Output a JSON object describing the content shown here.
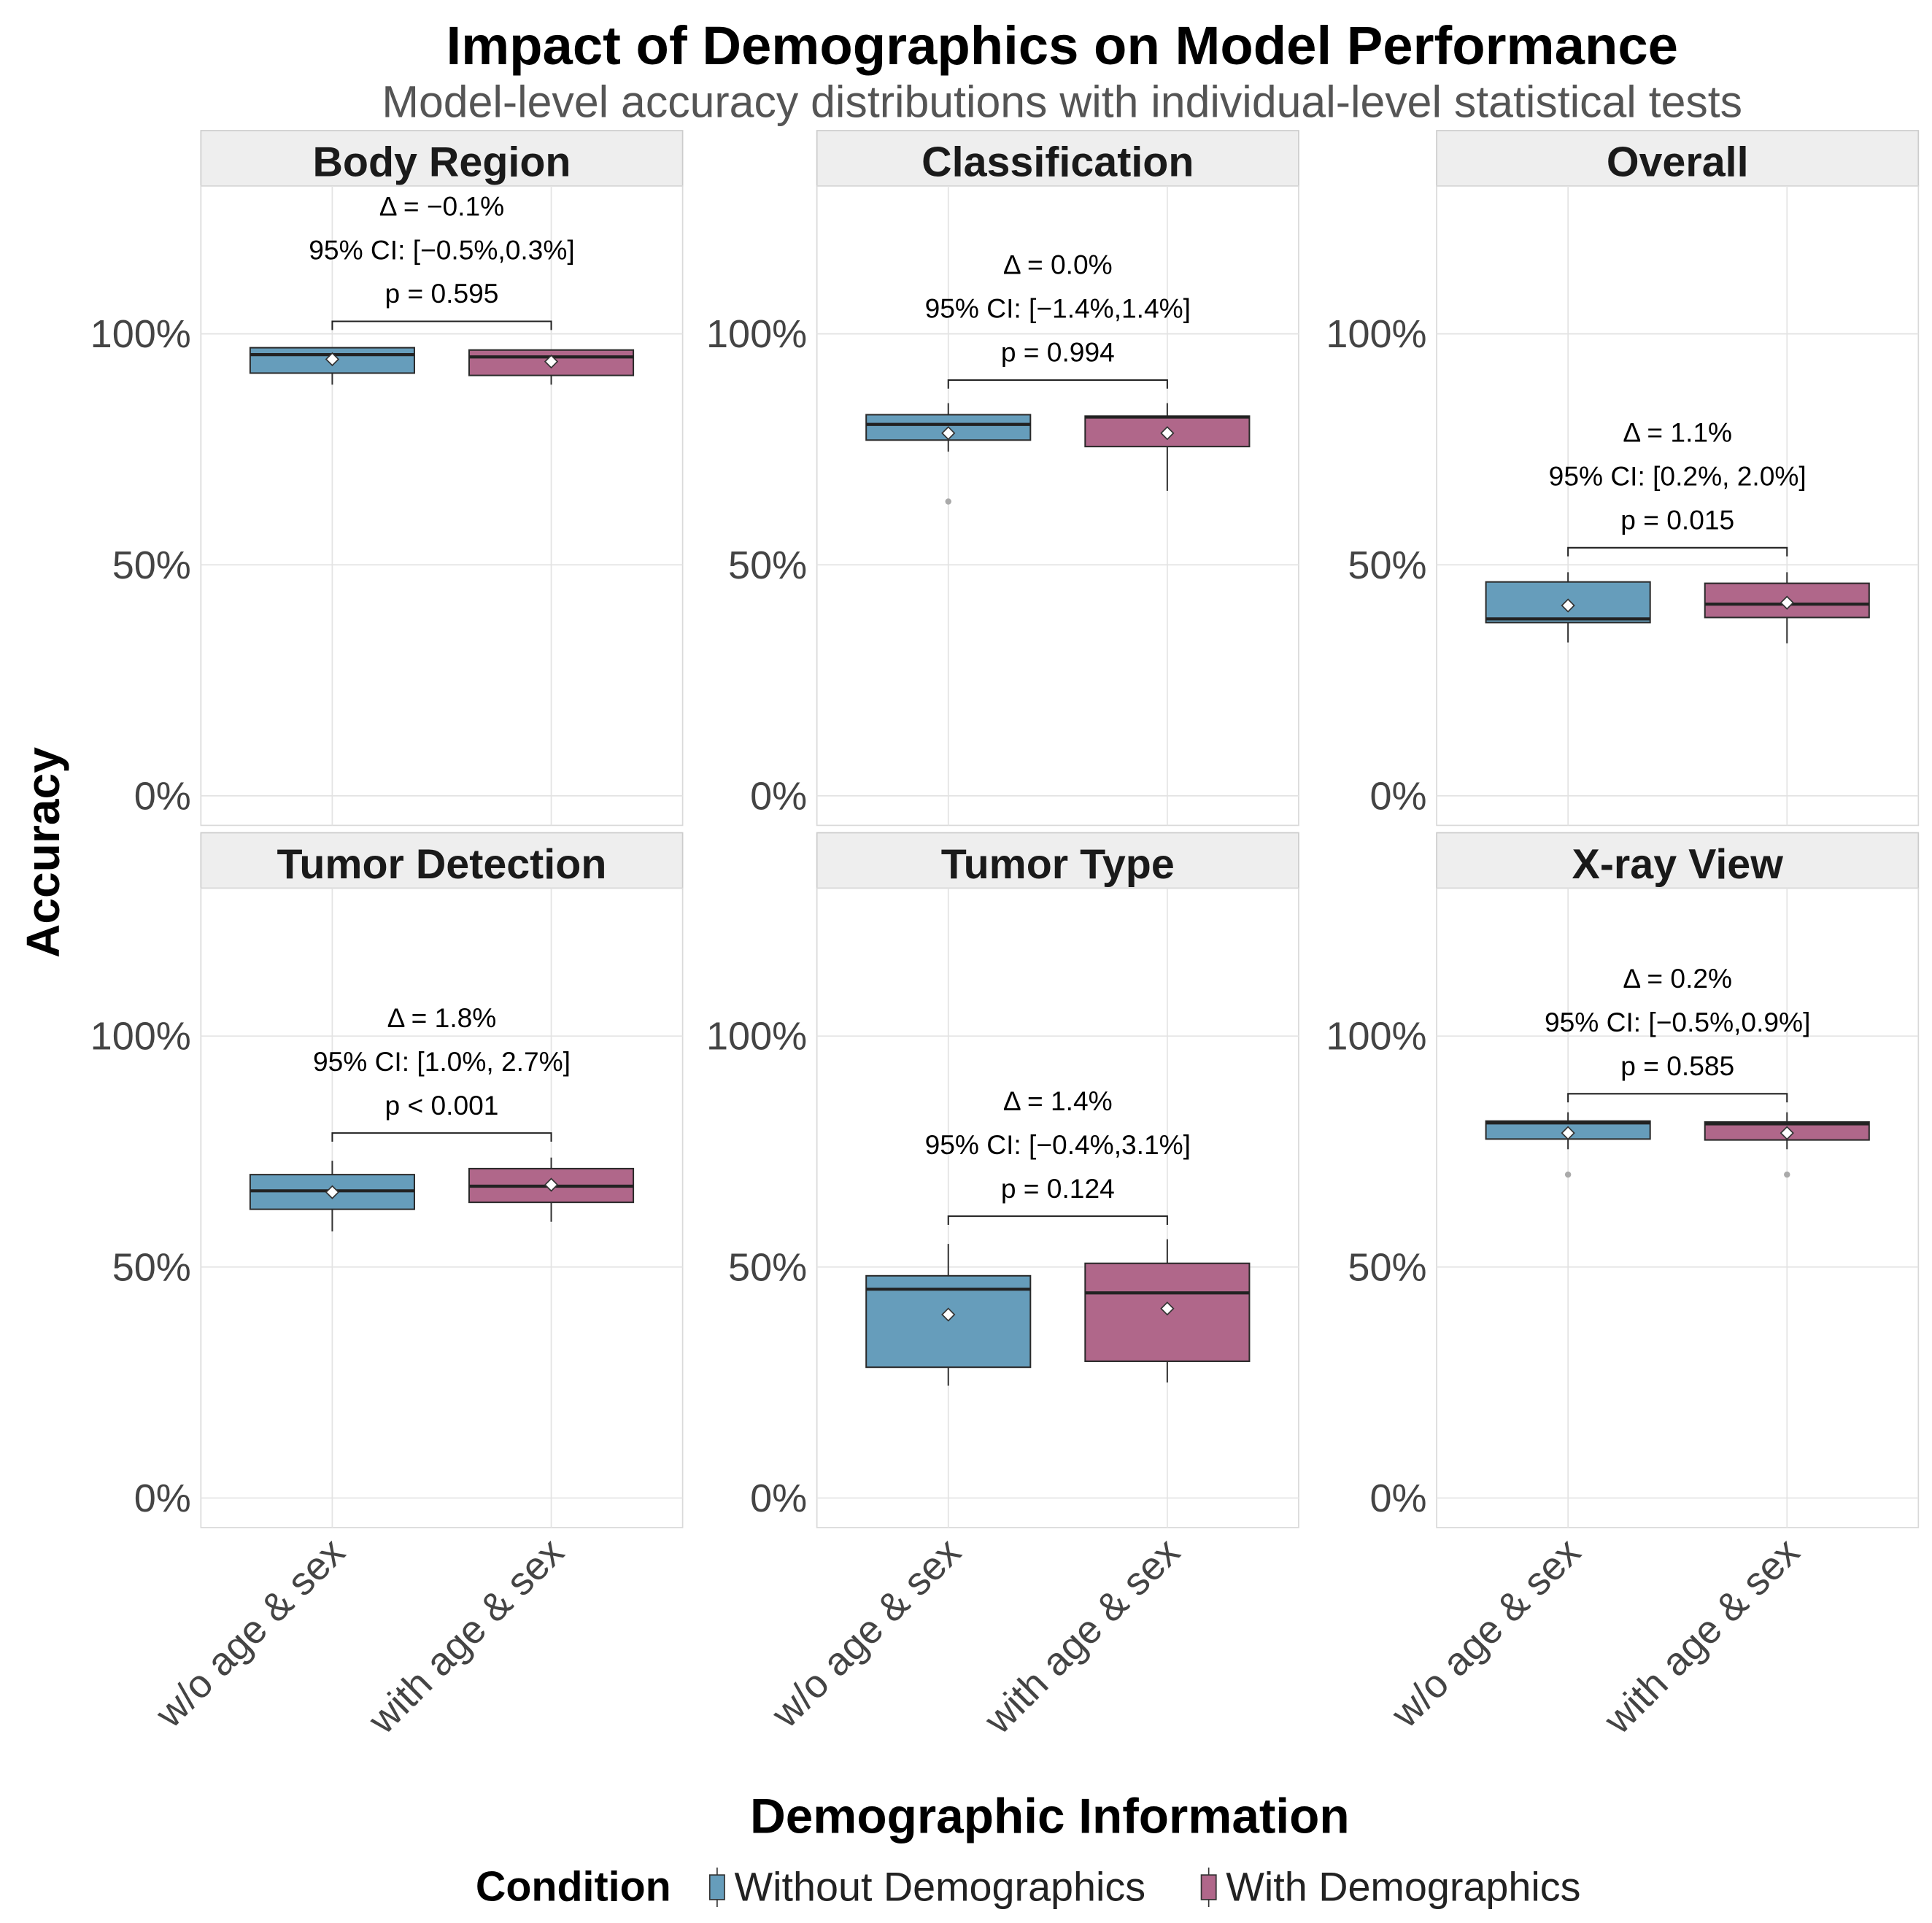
{
  "chart_data": {
    "type": "box",
    "title": "Impact of Demographics on Model Performance",
    "subtitle": "Model-level accuracy distributions with individual-level statistical tests",
    "xlabel": "Demographic Information",
    "ylabel": "Accuracy",
    "categories": [
      "w/o age & sex",
      "with age & sex"
    ],
    "yticks": [
      0,
      50,
      100
    ],
    "ytick_labels": [
      "0%",
      "50%",
      "100%"
    ],
    "ylim": [
      -6.4,
      132
    ],
    "grid": true,
    "legend": {
      "title": "Condition",
      "placement": "bottom",
      "entries": [
        {
          "name": "Without Demographics",
          "color": "#669DBB"
        },
        {
          "name": "With Demographics",
          "color": "#B0678A"
        }
      ]
    },
    "panels": [
      {
        "title": "Body Region",
        "annotation": [
          "Δ = −0.1%",
          "95% CI: [−0.5%,0.3%]",
          "p = 0.595"
        ],
        "bracket_y": 102.7,
        "series": [
          {
            "q1": 91.5,
            "median": 95.5,
            "q3": 97,
            "whisker_low": 89,
            "whisker_high": 97,
            "mean": 94.5,
            "outliers": []
          },
          {
            "q1": 91,
            "median": 95,
            "q3": 96.5,
            "whisker_low": 89,
            "whisker_high": 96.5,
            "mean": 94,
            "outliers": []
          }
        ]
      },
      {
        "title": "Classification",
        "annotation": [
          "Δ = 0.0%",
          "95% CI: [−1.4%,1.4%]",
          "p = 0.994"
        ],
        "bracket_y": 90,
        "series": [
          {
            "q1": 77,
            "median": 80.4,
            "q3": 82.5,
            "whisker_low": 74.5,
            "whisker_high": 85,
            "mean": 78.5,
            "outliers": [
              63.7
            ]
          },
          {
            "q1": 75.6,
            "median": 82,
            "q3": 82.2,
            "whisker_low": 66,
            "whisker_high": 85,
            "mean": 78.5,
            "outliers": []
          }
        ]
      },
      {
        "title": "Overall",
        "annotation": [
          "Δ = 1.1%",
          "95% CI: [0.2%, 2.0%]",
          "p = 0.015"
        ],
        "bracket_y": 53.7,
        "series": [
          {
            "q1": 37.5,
            "median": 38.3,
            "q3": 46.3,
            "whisker_low": 33.2,
            "whisker_high": 48.4,
            "mean": 41.2,
            "outliers": []
          },
          {
            "q1": 38.6,
            "median": 41.5,
            "q3": 46,
            "whisker_low": 33,
            "whisker_high": 48.4,
            "mean": 41.8,
            "outliers": []
          }
        ]
      },
      {
        "title": "Tumor Detection",
        "annotation": [
          "Δ = 1.8%",
          "95% CI: [1.0%, 2.7%]",
          "p < 0.001"
        ],
        "bracket_y": 79,
        "series": [
          {
            "q1": 62.5,
            "median": 66.5,
            "q3": 70,
            "whisker_low": 57.7,
            "whisker_high": 73,
            "mean": 66.2,
            "outliers": []
          },
          {
            "q1": 64,
            "median": 67.5,
            "q3": 71.3,
            "whisker_low": 59.8,
            "whisker_high": 73.7,
            "mean": 67.8,
            "outliers": []
          }
        ]
      },
      {
        "title": "Tumor Type",
        "annotation": [
          "Δ = 1.4%",
          "95% CI: [−0.4%,3.1%]",
          "p = 0.124"
        ],
        "bracket_y": 61,
        "series": [
          {
            "q1": 28.3,
            "median": 45.2,
            "q3": 48.1,
            "whisker_low": 24.3,
            "whisker_high": 55,
            "mean": 39.7,
            "outliers": []
          },
          {
            "q1": 29.6,
            "median": 44.4,
            "q3": 50.8,
            "whisker_low": 25,
            "whisker_high": 56,
            "mean": 41,
            "outliers": []
          }
        ]
      },
      {
        "title": "X-ray View",
        "annotation": [
          "Δ = 0.2%",
          "95% CI: [−0.5%,0.9%]",
          "p = 0.585"
        ],
        "bracket_y": 87.5,
        "series": [
          {
            "q1": 77.7,
            "median": 81.2,
            "q3": 81.6,
            "whisker_low": 75.5,
            "whisker_high": 83.5,
            "mean": 79,
            "outliers": [
              70
            ]
          },
          {
            "q1": 77.5,
            "median": 81,
            "q3": 81.4,
            "whisker_low": 75.5,
            "whisker_high": 83.5,
            "mean": 79,
            "outliers": [
              70
            ]
          }
        ]
      }
    ]
  }
}
